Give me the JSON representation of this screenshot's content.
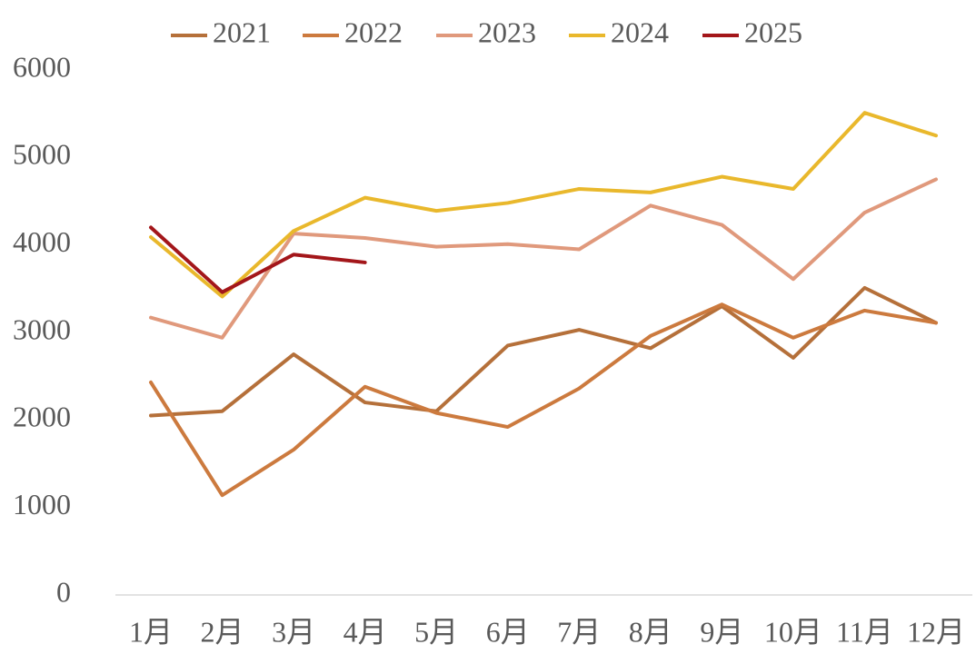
{
  "chart_data": {
    "type": "line",
    "categories": [
      "1月",
      "2月",
      "3月",
      "4月",
      "5月",
      "6月",
      "7月",
      "8月",
      "9月",
      "10月",
      "11月",
      "12月"
    ],
    "series": [
      {
        "name": "2021",
        "color": "#b5703a",
        "values": [
          2050,
          2100,
          2750,
          2200,
          2100,
          2850,
          3030,
          2820,
          3300,
          2710,
          3510,
          3110
        ]
      },
      {
        "name": "2022",
        "color": "#cc7a3e",
        "values": [
          2430,
          1140,
          1660,
          2380,
          2080,
          1920,
          2360,
          2960,
          3320,
          2940,
          3250,
          3110
        ]
      },
      {
        "name": "2023",
        "color": "#e0997c",
        "values": [
          3170,
          2940,
          4130,
          4080,
          3980,
          4010,
          3950,
          4450,
          4230,
          3610,
          4370,
          4750
        ]
      },
      {
        "name": "2024",
        "color": "#e9b82c",
        "values": [
          4090,
          3410,
          4160,
          4540,
          4390,
          4480,
          4640,
          4600,
          4780,
          4640,
          5510,
          5250
        ]
      },
      {
        "name": "2025",
        "color": "#a3161a",
        "values": [
          4200,
          3460,
          3890,
          3800,
          null,
          null,
          null,
          null,
          null,
          null,
          null,
          null
        ]
      }
    ],
    "ylim": [
      0,
      6000
    ],
    "yticks": [
      0,
      1000,
      2000,
      3000,
      4000,
      5000,
      6000
    ],
    "grid": false,
    "legend": "top"
  }
}
